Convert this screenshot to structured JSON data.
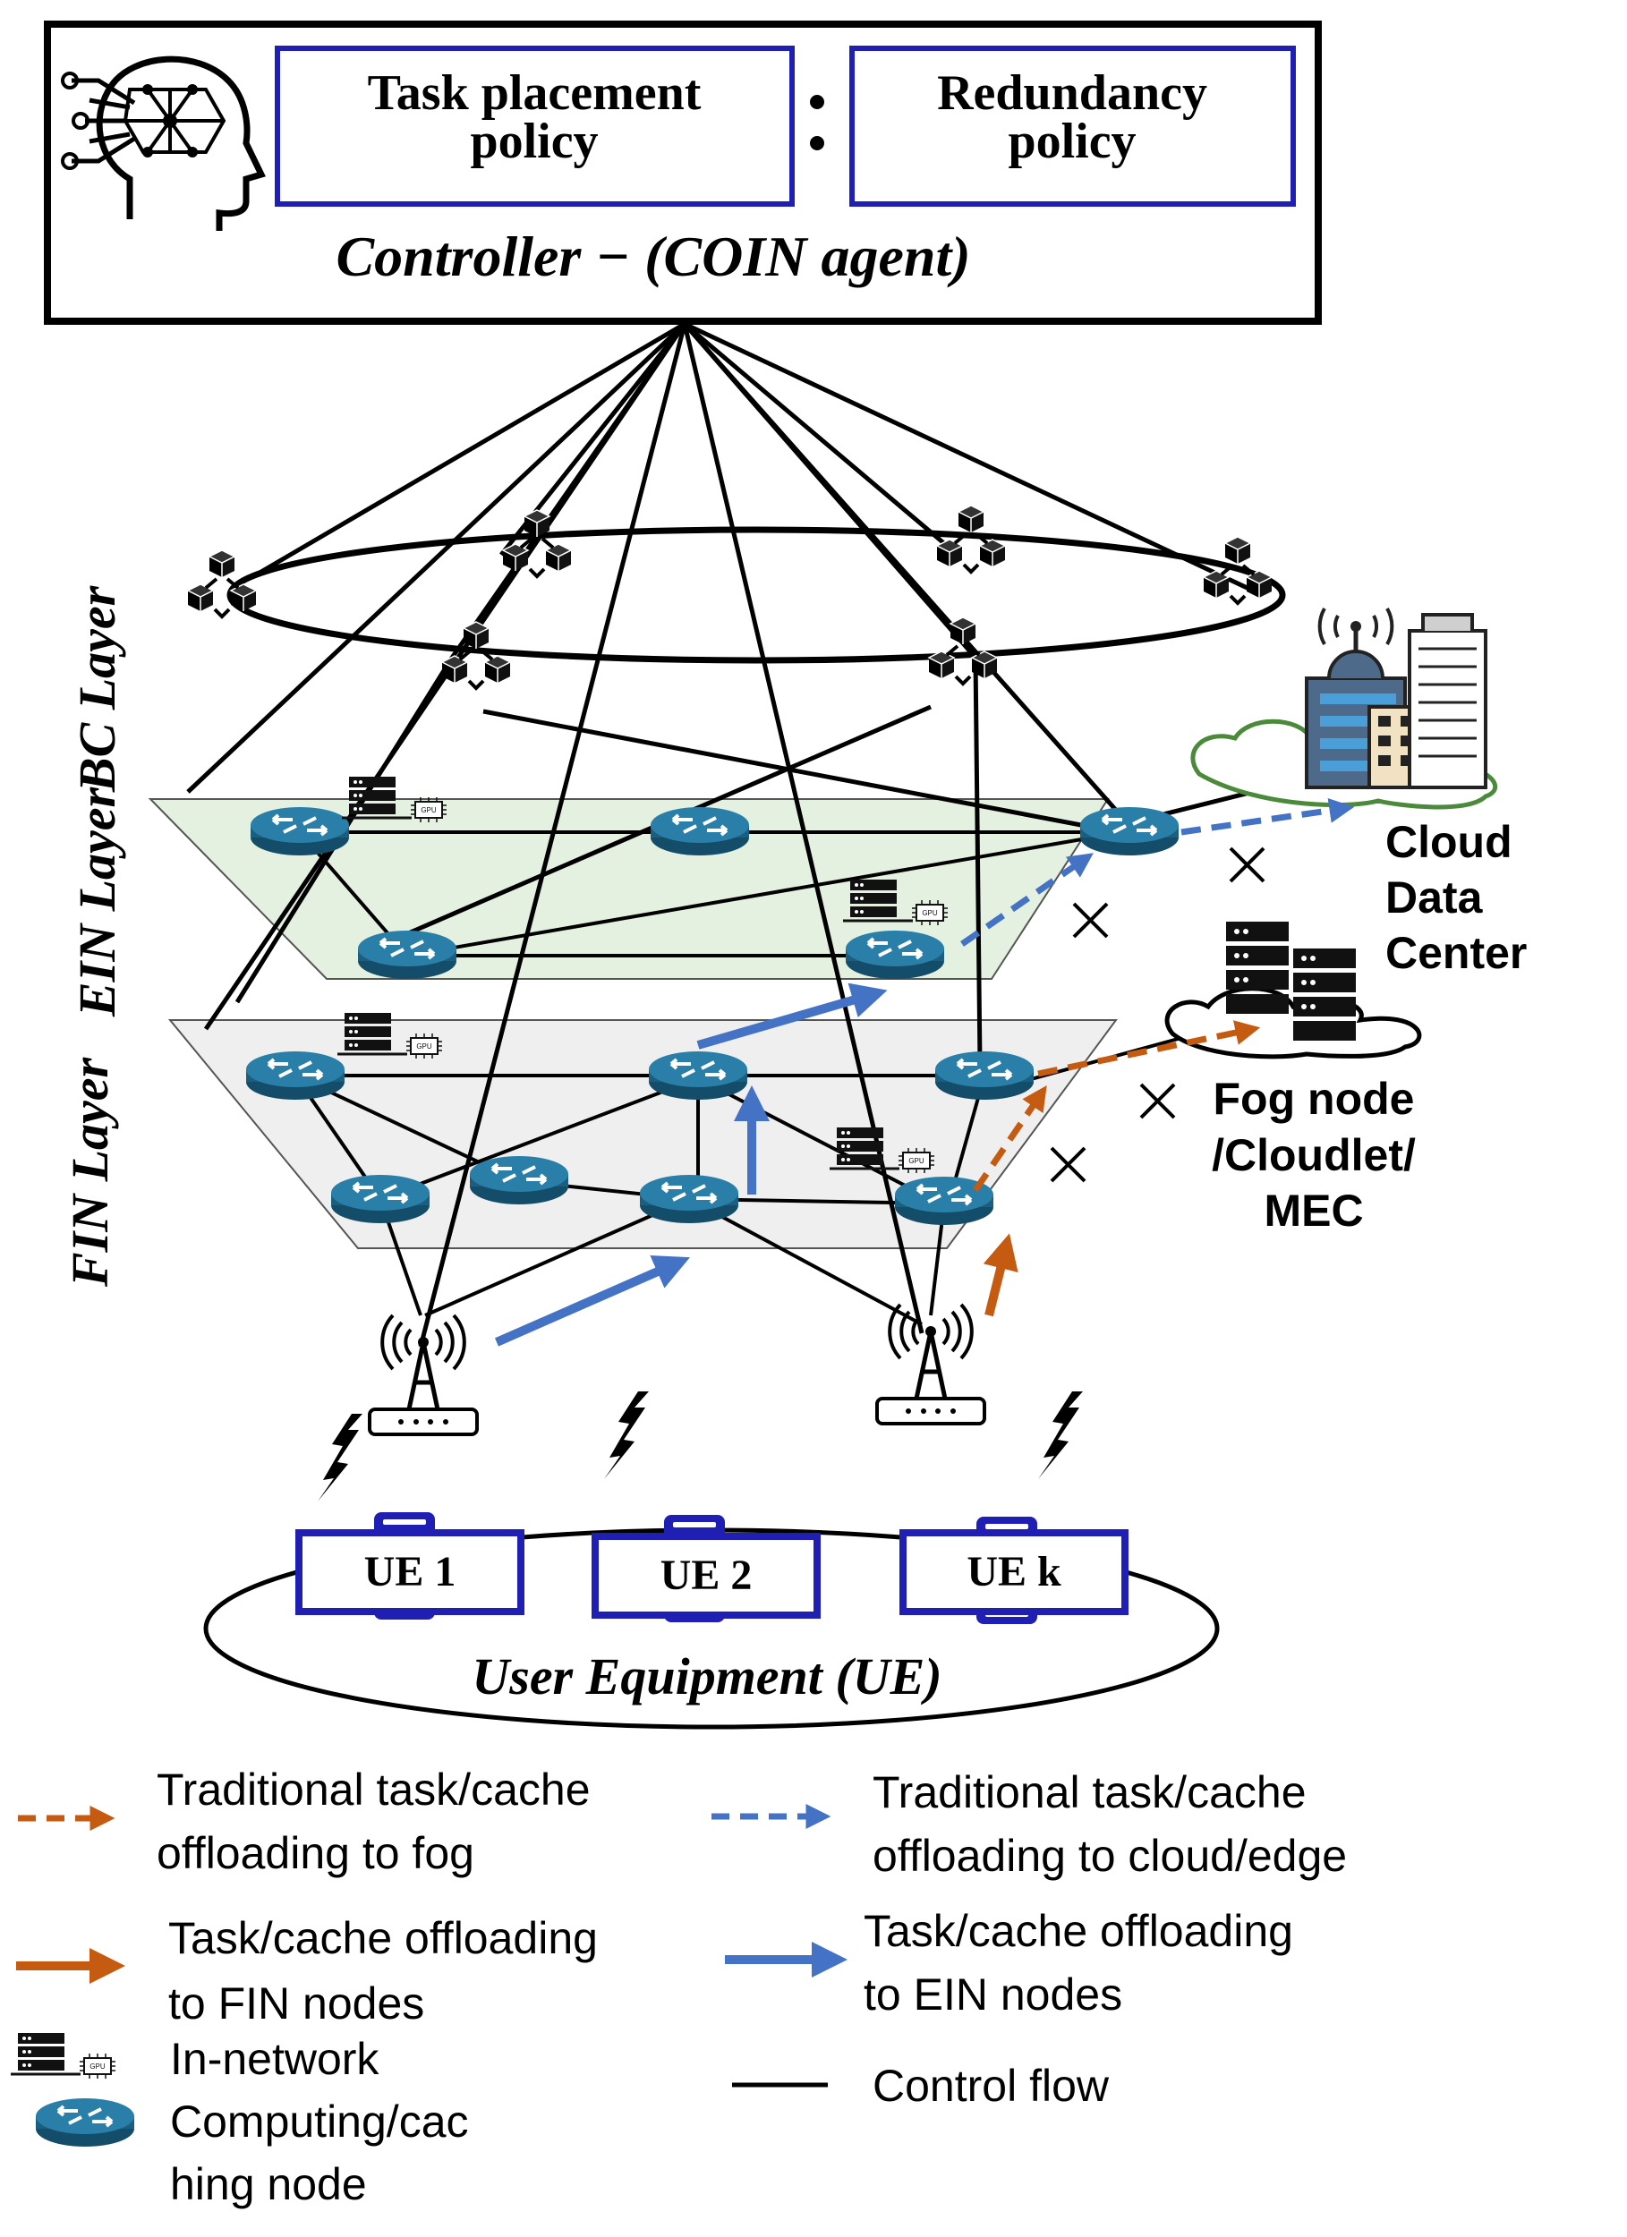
{
  "controller": {
    "task_placement": [
      "Task placement",
      "policy"
    ],
    "redundancy": [
      "Redundancy",
      "policy"
    ],
    "label": "Controller − (COIN agent)"
  },
  "layers": {
    "bc": "BC Layer",
    "ein": "EIN Layer",
    "fin": "FIN Layer"
  },
  "cloud_label": [
    "Cloud",
    "Data",
    "Center"
  ],
  "fog_label": [
    "Fog node",
    "/Cloudlet/",
    "MEC"
  ],
  "ue": {
    "items": [
      "UE 1",
      "UE 2",
      "UE k"
    ],
    "caption": "User Equipment (UE)"
  },
  "legend": {
    "trad_fog": [
      "Traditional task/cache",
      "offloading to fog"
    ],
    "trad_cloud": [
      "Traditional task/cache",
      "offloading to cloud/edge"
    ],
    "fin_offload": [
      "Task/cache offloading",
      "to FIN nodes"
    ],
    "ein_offload": [
      "Task/cache offloading",
      "to EIN nodes"
    ],
    "in_network": [
      "In-network",
      "Computing/cac",
      "hing node"
    ],
    "control_flow": "Control flow"
  },
  "colors": {
    "orange": "#c55a11",
    "blue": "#4472c4",
    "router": "#1f6e94",
    "box_border": "#1f1fb4",
    "ein_plane": "#e4f0e0",
    "fin_plane": "#efefef"
  }
}
